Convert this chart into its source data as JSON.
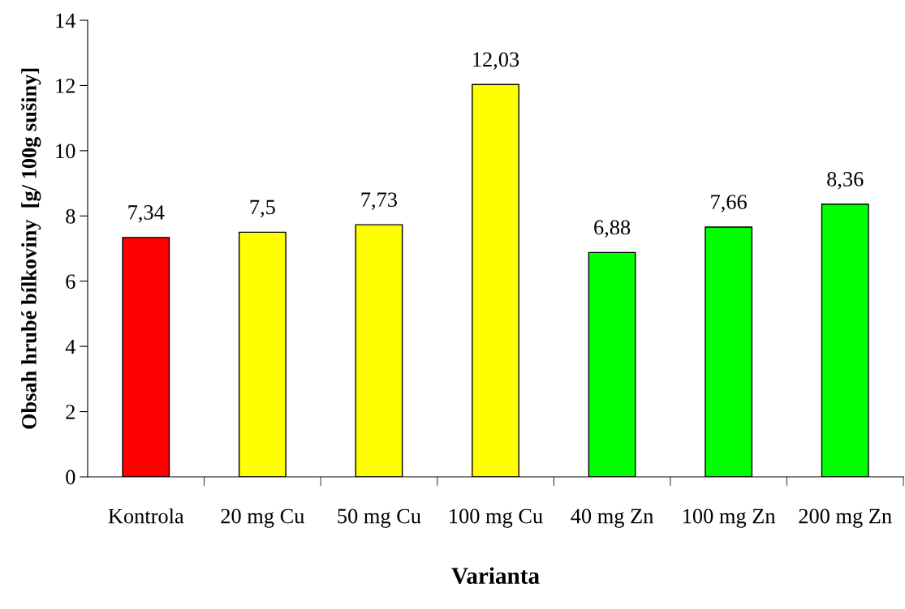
{
  "chart_data": {
    "type": "bar",
    "xlabel": "Varianta",
    "ylabel": "Obsah hrubé bílkoviny  [g/ 100g sušiny]",
    "categories": [
      "Kontrola",
      "20 mg Cu",
      "50 mg Cu",
      "100 mg Cu",
      "40 mg Zn",
      "100 mg Zn",
      "200 mg Zn"
    ],
    "values": [
      7.34,
      7.5,
      7.73,
      12.03,
      6.88,
      7.66,
      8.36
    ],
    "colors": [
      "#ff0000",
      "#ffff00",
      "#ffff00",
      "#ffff00",
      "#00ff00",
      "#00ff00",
      "#00ff00"
    ],
    "value_labels": [
      "7,34",
      "7,5",
      "7,73",
      "12,03",
      "6,88",
      "7,66",
      "8,36"
    ],
    "ylim": [
      0,
      14
    ],
    "yticks": [
      0,
      2,
      4,
      6,
      8,
      10,
      12,
      14
    ],
    "grid": false,
    "legend": false
  }
}
